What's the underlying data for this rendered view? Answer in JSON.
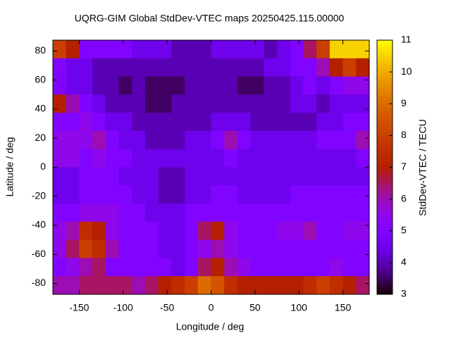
{
  "chart_data": {
    "type": "heatmap",
    "title": "UQRG-GIM Global StdDev-VTEC maps 20250425.115.00000",
    "x_label": "Longitude / deg",
    "y_label": "Latitude / deg",
    "colorbar_label": "StdDev-VTEC / TECU",
    "palette": "gnuplot",
    "xlim": [
      -180,
      180
    ],
    "ylim": [
      -87.5,
      87.5
    ],
    "cblim": [
      3,
      11
    ],
    "xticks": [
      -150,
      -100,
      -50,
      0,
      50,
      100,
      150
    ],
    "yticks": [
      -80,
      -60,
      -40,
      -20,
      0,
      20,
      40,
      60,
      80
    ],
    "cbticks": [
      3,
      4,
      5,
      6,
      7,
      8,
      9,
      10,
      11
    ],
    "x_bins": [
      -180,
      -165,
      -150,
      -135,
      -120,
      -105,
      -90,
      -75,
      -60,
      -45,
      -30,
      -15,
      0,
      15,
      30,
      45,
      60,
      75,
      90,
      105,
      120,
      135,
      150,
      165,
      180
    ],
    "y_bins": [
      87.5,
      75,
      62.5,
      50,
      37.5,
      25,
      12.5,
      0,
      -12.5,
      -25,
      -37.5,
      -50,
      -62.5,
      -75,
      -87.5
    ],
    "z": [
      [
        8,
        7,
        5,
        5,
        5,
        5,
        4.5,
        4.5,
        4.5,
        4,
        4,
        4,
        4.5,
        4.5,
        4.5,
        4.5,
        4,
        4.5,
        5,
        6.5,
        8,
        10.5,
        10.5,
        10.5
      ],
      [
        5,
        4.5,
        4.5,
        4,
        4,
        4,
        4,
        4,
        4,
        4,
        4,
        4,
        4,
        4,
        4,
        4,
        4.5,
        4.5,
        5,
        5,
        6,
        7,
        8,
        7
      ],
      [
        5,
        4.5,
        4.5,
        4,
        4,
        3.5,
        4,
        3.5,
        3.5,
        3.5,
        4,
        4,
        4,
        4,
        3.5,
        3.5,
        4,
        4,
        4.5,
        5,
        4.5,
        5,
        5.5,
        5.5
      ],
      [
        7,
        6,
        5,
        4.5,
        4,
        4,
        4,
        3.5,
        3.5,
        4,
        4,
        4,
        4,
        4,
        4,
        4,
        4,
        4,
        4.5,
        4.5,
        4,
        4.5,
        4.5,
        4.5
      ],
      [
        5,
        5,
        5.5,
        5,
        4.5,
        4.5,
        4,
        4,
        4,
        4,
        4,
        4,
        4.5,
        4.5,
        4.5,
        4,
        4,
        4,
        4,
        4,
        4.5,
        4.5,
        5,
        5
      ],
      [
        5.5,
        5.5,
        5.5,
        6,
        5,
        4.5,
        4.5,
        4,
        4,
        4,
        4.5,
        4.5,
        5,
        6,
        5,
        4.5,
        4.5,
        4.5,
        4.5,
        4.5,
        5,
        5,
        5,
        6
      ],
      [
        5.5,
        5.5,
        5,
        5.5,
        5,
        5,
        4.5,
        4.5,
        4.5,
        4.5,
        4.5,
        4.5,
        4.5,
        5,
        4.5,
        4.5,
        4.5,
        4.5,
        4.5,
        4.5,
        4.5,
        4.5,
        4.5,
        5
      ],
      [
        4.5,
        4.5,
        5,
        5,
        5,
        4.5,
        4.5,
        4.5,
        4,
        4,
        4.5,
        4.5,
        4.5,
        4.5,
        4.5,
        4.5,
        4.5,
        4.5,
        4.5,
        4.5,
        4.5,
        4.5,
        4.5,
        4.5
      ],
      [
        4.5,
        4.5,
        5,
        5,
        5,
        5,
        4.5,
        4.5,
        4,
        4,
        4.5,
        4.5,
        5,
        5,
        4.5,
        4.5,
        4.5,
        4.5,
        5,
        5,
        5,
        5,
        5,
        5
      ],
      [
        5,
        5,
        5.5,
        5.5,
        5.5,
        5,
        5,
        4.5,
        4.5,
        4.5,
        5,
        5,
        5,
        5,
        5,
        5,
        5,
        5,
        5,
        5,
        5,
        5,
        5,
        5
      ],
      [
        5.5,
        6,
        7.5,
        7,
        5.5,
        5,
        5,
        5,
        4.5,
        4.5,
        5,
        6.5,
        7,
        5.5,
        5,
        5,
        5,
        5.5,
        5.5,
        6,
        5,
        5,
        5.5,
        5.5
      ],
      [
        5.5,
        6.5,
        8,
        7.5,
        6,
        5,
        5,
        5,
        4.5,
        4.5,
        5,
        5.5,
        6,
        5.5,
        5,
        5,
        5,
        5,
        5,
        5,
        5,
        5,
        5,
        5
      ],
      [
        5,
        5.5,
        6,
        6.5,
        5,
        5,
        5,
        5,
        5,
        4.5,
        5,
        6.5,
        7,
        6,
        5.5,
        5,
        5,
        5,
        5,
        5,
        5,
        5.5,
        5,
        5
      ],
      [
        6,
        6,
        6.5,
        6.5,
        6.5,
        6.5,
        6,
        6.5,
        7,
        7.5,
        8,
        9,
        8.5,
        7.5,
        7,
        7,
        7,
        7,
        7,
        7.5,
        8,
        7.5,
        7,
        6.5
      ]
    ]
  }
}
